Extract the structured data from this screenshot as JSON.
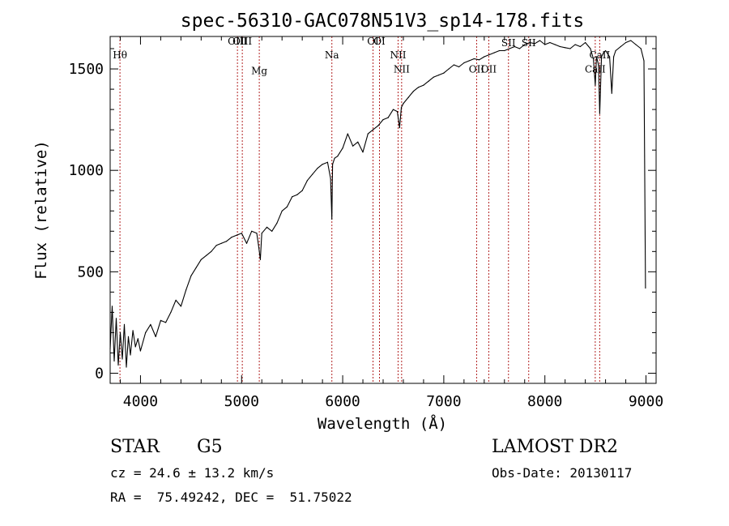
{
  "chart_data": {
    "type": "line",
    "title": "spec-56310-GAC078N51V3_sp14-178.fits",
    "xlabel": "Wavelength (Å)",
    "ylabel": "Flux (relative)",
    "xlim": [
      3700,
      9100
    ],
    "ylim": [
      -50,
      1660
    ],
    "xticks": [
      4000,
      5000,
      6000,
      7000,
      8000,
      9000
    ],
    "yticks": [
      0,
      500,
      1000,
      1500
    ],
    "grid": false,
    "line_color": "#000000",
    "marker_color": "#b22222",
    "series": [
      {
        "x": [
          3700,
          3720,
          3740,
          3760,
          3780,
          3800,
          3820,
          3840,
          3860,
          3880,
          3900,
          3925,
          3950,
          3975,
          4000,
          4050,
          4100,
          4150,
          4200,
          4250,
          4300,
          4350,
          4400,
          4450,
          4500,
          4550,
          4600,
          4650,
          4700,
          4750,
          4800,
          4850,
          4900,
          4950,
          5000,
          5050,
          5100,
          5150,
          5170,
          5185,
          5200,
          5250,
          5300,
          5350,
          5400,
          5450,
          5500,
          5550,
          5600,
          5650,
          5700,
          5750,
          5800,
          5850,
          5880,
          5893,
          5900,
          5920,
          5950,
          6000,
          6050,
          6100,
          6150,
          6200,
          6250,
          6300,
          6350,
          6400,
          6450,
          6500,
          6540,
          6563,
          6580,
          6600,
          6650,
          6700,
          6750,
          6800,
          6850,
          6900,
          6950,
          7000,
          7050,
          7100,
          7150,
          7200,
          7250,
          7300,
          7350,
          7400,
          7450,
          7500,
          7550,
          7600,
          7650,
          7700,
          7750,
          7800,
          7850,
          7900,
          7950,
          8000,
          8050,
          8100,
          8150,
          8200,
          8250,
          8300,
          8350,
          8400,
          8450,
          8480,
          8498,
          8510,
          8530,
          8542,
          8560,
          8580,
          8600,
          8640,
          8662,
          8680,
          8700,
          8750,
          8800,
          8850,
          8900,
          8950,
          8980,
          8995
        ],
        "y": [
          120,
          330,
          60,
          270,
          40,
          200,
          70,
          240,
          30,
          180,
          90,
          210,
          130,
          170,
          110,
          200,
          240,
          180,
          260,
          250,
          300,
          360,
          330,
          410,
          480,
          520,
          560,
          580,
          600,
          630,
          640,
          650,
          670,
          680,
          690,
          640,
          700,
          690,
          620,
          560,
          690,
          720,
          700,
          740,
          800,
          820,
          870,
          880,
          900,
          950,
          980,
          1010,
          1030,
          1040,
          960,
          760,
          1030,
          1060,
          1070,
          1110,
          1180,
          1120,
          1140,
          1090,
          1180,
          1200,
          1220,
          1250,
          1260,
          1300,
          1290,
          1210,
          1310,
          1330,
          1360,
          1390,
          1410,
          1420,
          1440,
          1460,
          1470,
          1480,
          1500,
          1520,
          1510,
          1530,
          1540,
          1550,
          1545,
          1560,
          1570,
          1580,
          1590,
          1590,
          1600,
          1610,
          1600,
          1620,
          1630,
          1625,
          1640,
          1620,
          1630,
          1620,
          1610,
          1605,
          1600,
          1620,
          1610,
          1630,
          1600,
          1550,
          1420,
          1560,
          1520,
          1280,
          1560,
          1580,
          1590,
          1560,
          1380,
          1560,
          1590,
          1610,
          1630,
          1640,
          1620,
          1600,
          1540,
          420
        ]
      }
    ],
    "line_markers": [
      {
        "label": "Hθ",
        "x": 3797,
        "label_y": 1553
      },
      {
        "label": "OIII",
        "x": 4959,
        "label_y": 1620
      },
      {
        "label": "OIII",
        "x": 5007,
        "label_y": 1620
      },
      {
        "label": "Mg",
        "x": 5175,
        "label_y": 1474
      },
      {
        "label": "Na",
        "x": 5893,
        "label_y": 1553
      },
      {
        "label": "OI",
        "x": 6300,
        "label_y": 1620
      },
      {
        "label": "OI",
        "x": 6364,
        "label_y": 1620
      },
      {
        "label": "NII",
        "x": 6548,
        "label_y": 1553
      },
      {
        "label": "NII",
        "x": 6583,
        "label_y": 1482
      },
      {
        "label": "OII",
        "x": 7325,
        "label_y": 1482
      },
      {
        "label": "OII",
        "x": 7445,
        "label_y": 1482
      },
      {
        "label": "SII",
        "x": 7640,
        "label_y": 1612
      },
      {
        "label": "SII",
        "x": 7840,
        "label_y": 1612
      },
      {
        "label": "CaII",
        "x": 8498,
        "label_y": 1482
      },
      {
        "label": "CaII",
        "x": 8542,
        "label_y": 1553
      }
    ]
  },
  "info": {
    "object_class": "STAR",
    "subclass": "G5",
    "survey": "LAMOST DR2",
    "cz": "cz = 24.6 ± 13.2 km/s",
    "obs_date": "Obs-Date: 20130117",
    "coords": "RA =  75.49242, DEC =  51.75022"
  }
}
